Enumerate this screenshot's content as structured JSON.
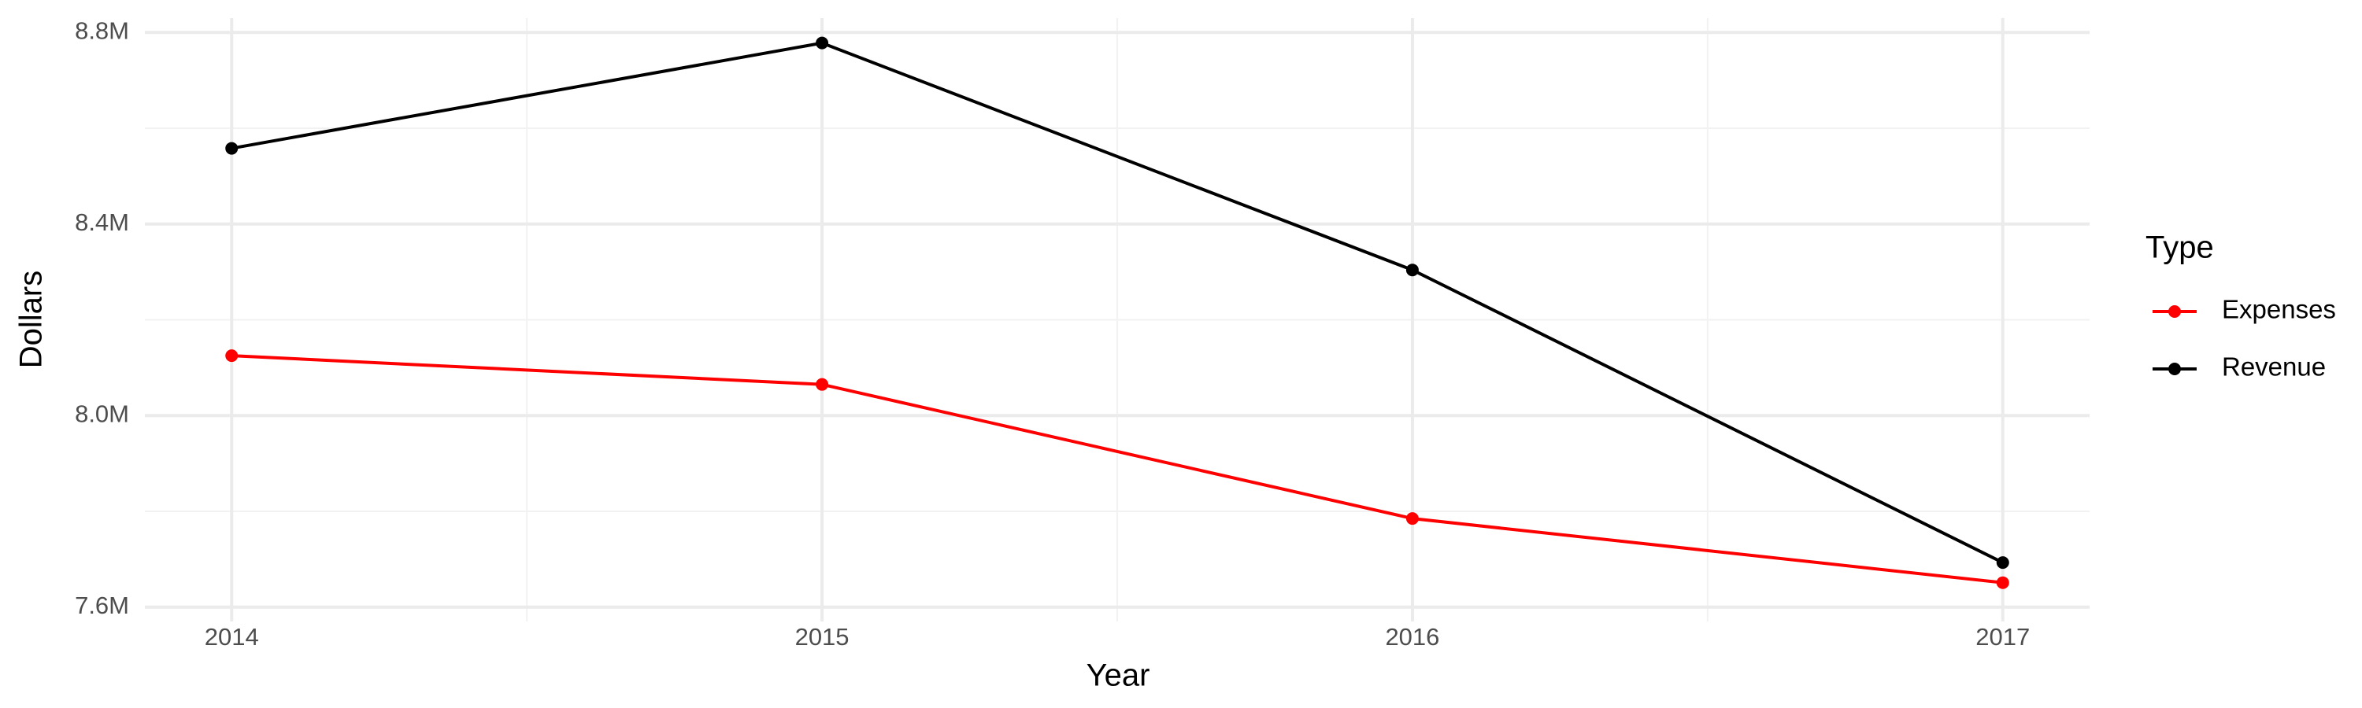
{
  "chart_data": {
    "type": "line",
    "x_label": "Year",
    "y_label": "Dollars",
    "x": [
      2014,
      2015,
      2016,
      2017
    ],
    "xlim": [
      2013.853,
      2017.147
    ],
    "xticks": [
      2014,
      2015,
      2016,
      2017
    ],
    "ylim": [
      7570000,
      8830000
    ],
    "yticks": [
      {
        "value": 7600000,
        "label": "7.6M"
      },
      {
        "value": 8000000,
        "label": "8.0M"
      },
      {
        "value": 8400000,
        "label": "8.4M"
      },
      {
        "value": 8800000,
        "label": "8.8M"
      }
    ],
    "grid": true,
    "legend_title": "Type",
    "legend_position": "right",
    "series": [
      {
        "name": "Expenses",
        "color": "#ff0000",
        "values": [
          8125000,
          8065000,
          7785000,
          7651000
        ]
      },
      {
        "name": "Revenue",
        "color": "#000000",
        "values": [
          8558000,
          8778000,
          8304000,
          7693000
        ]
      }
    ]
  }
}
